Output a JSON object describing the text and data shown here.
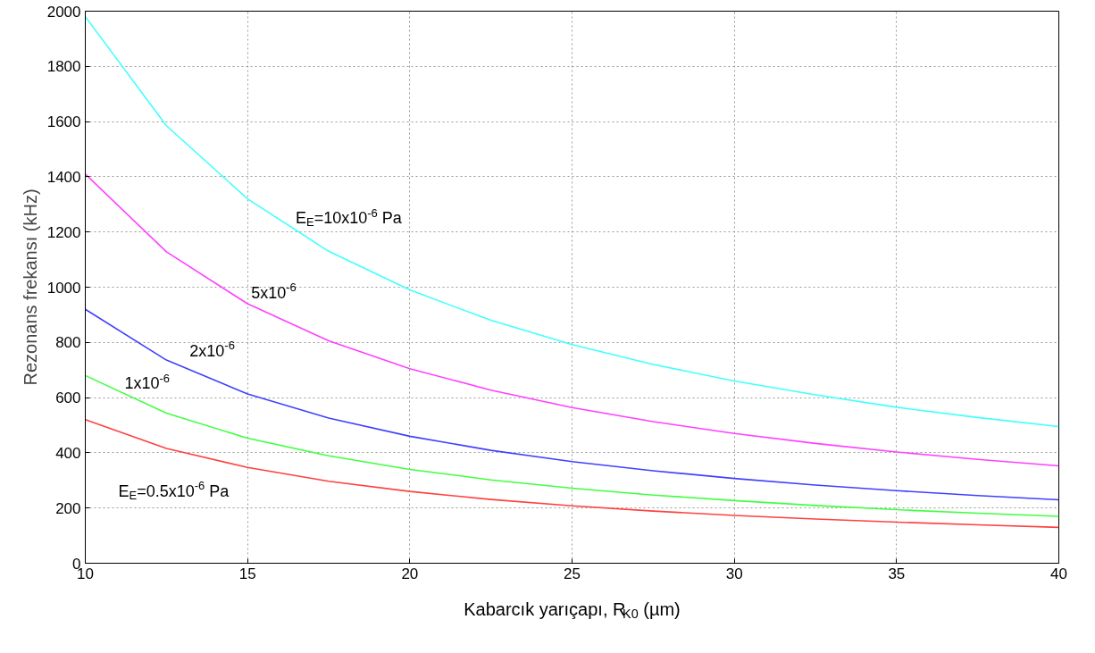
{
  "chart_data": {
    "type": "line",
    "xlabel": "Kabarcık yarıçapı, R$_{K0}$ (µm)",
    "ylabel": "Rezonans frekansı (kHz)",
    "x": [
      10,
      12.5,
      15,
      17.5,
      20,
      22.5,
      25,
      27.5,
      30,
      32.5,
      35,
      37.5,
      40
    ],
    "series": [
      {
        "name": "E$_{E}$=10x10$^{-6}$ Pa",
        "color": "#40ffff",
        "values": [
          1980,
          1585,
          1320,
          1130,
          990,
          880,
          792,
          720,
          660,
          610,
          565,
          528,
          495
        ]
      },
      {
        "name": "5x10$^{-6}$",
        "color": "#ff40ff",
        "values": [
          1410,
          1128,
          940,
          806,
          705,
          627,
          564,
          513,
          470,
          434,
          403,
          376,
          353
        ]
      },
      {
        "name": "2x10$^{-6}$",
        "color": "#4040ff",
        "values": [
          920,
          736,
          613,
          526,
          460,
          409,
          368,
          335,
          307,
          283,
          263,
          245,
          230
        ]
      },
      {
        "name": "1x10$^{-6}$",
        "color": "#40ff40",
        "values": [
          680,
          544,
          453,
          389,
          340,
          302,
          272,
          247,
          227,
          209,
          194,
          181,
          170
        ]
      },
      {
        "name": "E$_{E}$=0.5x10$^{-6}$ Pa",
        "color": "#ff4040",
        "values": [
          520,
          416,
          347,
          297,
          260,
          231,
          208,
          189,
          173,
          160,
          149,
          139,
          130
        ]
      }
    ],
    "xlim": [
      10,
      40
    ],
    "xticks": [
      10,
      15,
      20,
      25,
      30,
      35,
      40
    ],
    "ylim": [
      0,
      2000
    ],
    "yticks": [
      0,
      200,
      400,
      600,
      800,
      1000,
      1200,
      1400,
      1600,
      1800,
      2000
    ],
    "grid": true,
    "marker": "none",
    "line_style": "solid"
  }
}
